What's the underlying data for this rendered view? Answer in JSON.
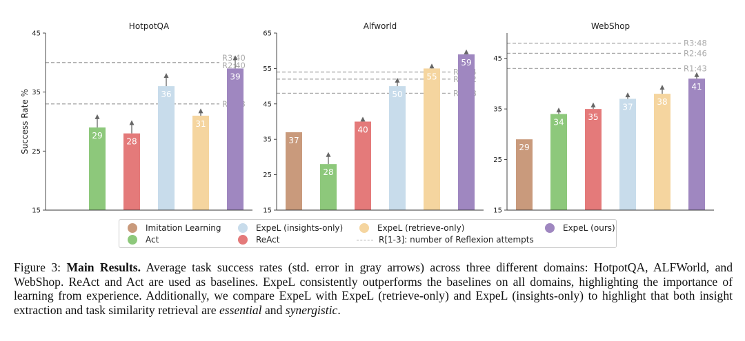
{
  "chart_data": [
    {
      "type": "bar",
      "title": "HotpotQA",
      "ylabel": "Success Rate %",
      "ylim": [
        15,
        45
      ],
      "yticks": [
        "15",
        "25",
        "35",
        "45"
      ],
      "yticks_values": [
        15,
        25,
        35,
        45
      ],
      "series": [
        {
          "name": "Act",
          "value": 29,
          "label": "29",
          "error_top": 31,
          "color": "#8dc87b"
        },
        {
          "name": "ReAct",
          "value": 28,
          "label": "28",
          "error_top": 30,
          "color": "#e47a7a"
        },
        {
          "name": "ExpeL (insights-only)",
          "value": 36,
          "label": "36",
          "error_top": 38,
          "color": "#c8dceb"
        },
        {
          "name": "ExpeL (retrieve-only)",
          "value": 31,
          "label": "31",
          "error_top": 32,
          "color": "#f5d59f"
        },
        {
          "name": "ExpeL (ours)",
          "value": 39,
          "label": "39",
          "error_top": 41,
          "color": "#9f87c0"
        }
      ],
      "reference_lines": [
        {
          "label": "R3:40",
          "value": 40
        },
        {
          "label": "R2:40",
          "value": 40
        },
        {
          "label": "R1:33",
          "value": 33
        }
      ]
    },
    {
      "type": "bar",
      "title": "Alfworld",
      "ylabel": "",
      "ylim": [
        15,
        65
      ],
      "yticks": [
        "15",
        "25",
        "35",
        "45",
        "55",
        "65"
      ],
      "yticks_values": [
        15,
        25,
        35,
        45,
        55,
        65
      ],
      "series": [
        {
          "name": "Imitation Learning",
          "value": 37,
          "label": "37",
          "error_top": null,
          "color": "#c99a7c"
        },
        {
          "name": "Act",
          "value": 28,
          "label": "28",
          "error_top": 31,
          "color": "#8dc87b"
        },
        {
          "name": "ReAct",
          "value": 40,
          "label": "40",
          "error_top": 41,
          "color": "#e47a7a"
        },
        {
          "name": "ExpeL (insights-only)",
          "value": 50,
          "label": "50",
          "error_top": 52,
          "color": "#c8dceb"
        },
        {
          "name": "ExpeL (retrieve-only)",
          "value": 55,
          "label": "55",
          "error_top": 56,
          "color": "#f5d59f"
        },
        {
          "name": "ExpeL (ours)",
          "value": 59,
          "label": "59",
          "error_top": 60,
          "color": "#9f87c0"
        }
      ],
      "reference_lines": [
        {
          "label": "R3:54",
          "value": 54
        },
        {
          "label": "R2:52",
          "value": 52
        },
        {
          "label": "R1:48",
          "value": 48
        }
      ]
    },
    {
      "type": "bar",
      "title": "WebShop",
      "ylabel": "",
      "ylim": [
        15,
        50
      ],
      "yticks": [
        "15",
        "25",
        "35",
        "45"
      ],
      "yticks_values": [
        15,
        25,
        35,
        45
      ],
      "series": [
        {
          "name": "Imitation Learning",
          "value": 29,
          "label": "29",
          "error_top": null,
          "color": "#c99a7c"
        },
        {
          "name": "Act",
          "value": 34,
          "label": "34",
          "error_top": 35,
          "color": "#8dc87b"
        },
        {
          "name": "ReAct",
          "value": 35,
          "label": "35",
          "error_top": 36,
          "color": "#e47a7a"
        },
        {
          "name": "ExpeL (insights-only)",
          "value": 37,
          "label": "37",
          "error_top": 38,
          "color": "#c8dceb"
        },
        {
          "name": "ExpeL (retrieve-only)",
          "value": 38,
          "label": "38",
          "error_top": 39.5,
          "color": "#f5d59f"
        },
        {
          "name": "ExpeL (ours)",
          "value": 41,
          "label": "41",
          "error_top": 42,
          "color": "#9f87c0"
        }
      ],
      "reference_lines": [
        {
          "label": "R3:48",
          "value": 48
        },
        {
          "label": "R2:46",
          "value": 46
        },
        {
          "label": "R1:43",
          "value": 43
        }
      ]
    }
  ],
  "legend": {
    "entries": [
      {
        "label": "Imitation Learning",
        "color": "#c99a7c",
        "marker": "circle"
      },
      {
        "label": "Act",
        "color": "#8dc87b",
        "marker": "circle"
      },
      {
        "label": "ExpeL (insights-only)",
        "color": "#c8dceb",
        "marker": "circle"
      },
      {
        "label": "ReAct",
        "color": "#e47a7a",
        "marker": "circle"
      },
      {
        "label": "ExpeL (retrieve-only)",
        "color": "#f5d59f",
        "marker": "circle"
      },
      {
        "label": "R[1-3]: number of Reflexion attempts",
        "color": "#aaaaaa",
        "marker": "dashed-line"
      },
      {
        "label": "ExpeL (ours)",
        "color": "#9f87c0",
        "marker": "circle"
      }
    ]
  },
  "caption": {
    "prefix": "Figure 3: ",
    "bold": "Main Results.",
    "text1": " Average task success rates (std. error in gray arrows) across three different domains: HotpotQA, ALFWorld, and WebShop. ReAct and Act are used as baselines. ExpeL consistently outperforms the baselines on all domains, highlighting the importance of learning from experience. Additionally, we compare ExpeL with ExpeL (retrieve-only) and ExpeL (insights-only) to highlight that both insight extraction and task similarity retrieval are ",
    "italic1": "essential",
    "text2": " and ",
    "italic2": "synergistic",
    "text3": "."
  }
}
